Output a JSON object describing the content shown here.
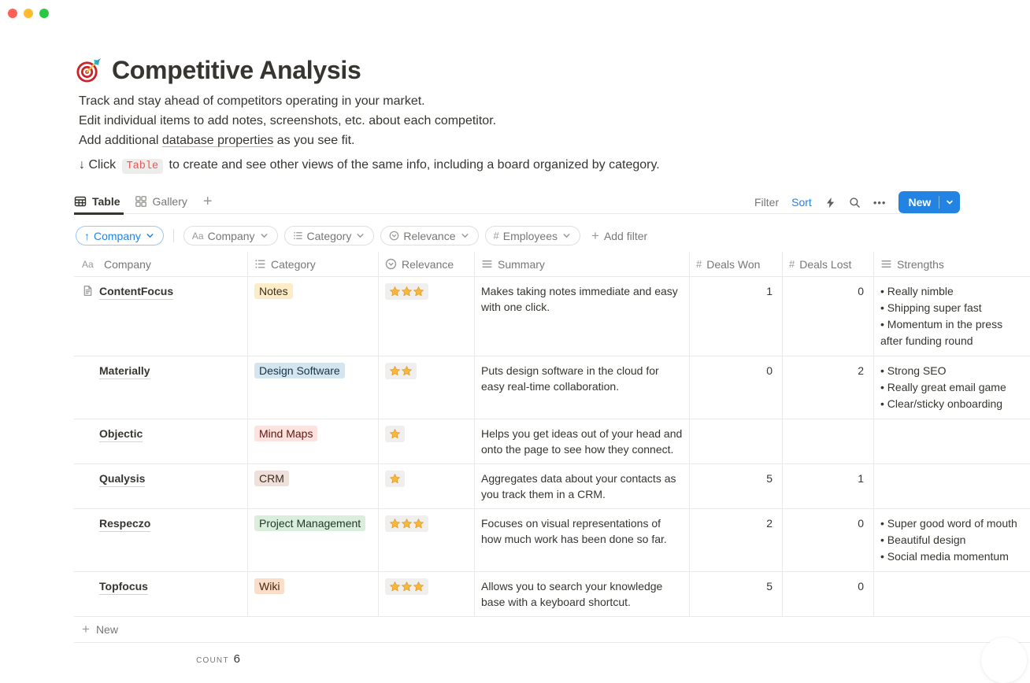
{
  "window": {
    "traffic_lights": {
      "close": "#FF5F57",
      "minimize": "#FEBC2E",
      "zoom": "#28C840"
    }
  },
  "page": {
    "icon_emoji": "🎯",
    "title": "Competitive Analysis",
    "description_line1": "Track and stay ahead of competitors operating in your market.",
    "description_line2": "Edit individual items to add notes, screenshots, etc. about each competitor.",
    "description_line3_prefix": "Add additional ",
    "description_line3_link": "database properties",
    "description_line3_suffix": " as you see fit.",
    "callout_arrow": "↓",
    "callout_prefix": "Click",
    "callout_code": "Table",
    "callout_suffix": "to create and see other views of the same info, including a board organized by category."
  },
  "views": {
    "tabs": [
      {
        "label": "Table",
        "icon": "table-icon",
        "active": true
      },
      {
        "label": "Gallery",
        "icon": "gallery-icon",
        "active": false
      }
    ],
    "add_view_label": "+"
  },
  "toolbar": {
    "filter_label": "Filter",
    "sort_label": "Sort",
    "icons": [
      "lightning-icon",
      "search-icon",
      "more-icon"
    ],
    "new_label": "New"
  },
  "filters": {
    "sort_chip": {
      "direction": "↑",
      "label": "Company"
    },
    "chips": [
      {
        "icon": "text-icon",
        "label": "Company"
      },
      {
        "icon": "list-icon",
        "label": "Category"
      },
      {
        "icon": "select-icon",
        "label": "Relevance"
      },
      {
        "icon": "number-icon",
        "label": "Employees"
      }
    ],
    "add_filter_label": "Add filter"
  },
  "table": {
    "columns": [
      {
        "icon": "text-icon",
        "label": "Company"
      },
      {
        "icon": "list-icon",
        "label": "Category"
      },
      {
        "icon": "select-icon",
        "label": "Relevance"
      },
      {
        "icon": "lines-icon",
        "label": "Summary"
      },
      {
        "icon": "number-icon",
        "label": "Deals Won"
      },
      {
        "icon": "number-icon",
        "label": "Deals Lost"
      },
      {
        "icon": "lines-icon",
        "label": "Strengths"
      }
    ],
    "rows": [
      {
        "company": "ContentFocus",
        "has_page_icon": true,
        "category": "Notes",
        "category_color": "yellow",
        "relevance": 3,
        "summary": "Makes taking notes immediate and easy with one click.",
        "deals_won": "1",
        "deals_lost": "0",
        "strengths": [
          "Really nimble",
          "Shipping super fast",
          "Momentum in the press after funding round"
        ]
      },
      {
        "company": "Materially",
        "has_page_icon": false,
        "category": "Design Software",
        "category_color": "blue",
        "relevance": 2,
        "summary": "Puts design software in the cloud for easy real-time collaboration.",
        "deals_won": "0",
        "deals_lost": "2",
        "strengths": [
          "Strong SEO",
          "Really great email game",
          "Clear/sticky onboarding"
        ]
      },
      {
        "company": "Objectic",
        "has_page_icon": false,
        "category": "Mind Maps",
        "category_color": "red",
        "relevance": 1,
        "summary": "Helps you get ideas out of your head and onto the page to see how they connect.",
        "deals_won": "",
        "deals_lost": "",
        "strengths": []
      },
      {
        "company": "Qualysis",
        "has_page_icon": false,
        "category": "CRM",
        "category_color": "brown",
        "relevance": 1,
        "summary": "Aggregates data about your contacts as you track them in a CRM.",
        "deals_won": "5",
        "deals_lost": "1",
        "strengths": []
      },
      {
        "company": "Respeczo",
        "has_page_icon": false,
        "category": "Project Management",
        "category_color": "green",
        "relevance": 3,
        "summary": "Focuses on visual representations of how much work has been done so far.",
        "deals_won": "2",
        "deals_lost": "0",
        "strengths": [
          "Super good word of mouth",
          "Beautiful design",
          "Social media momentum"
        ]
      },
      {
        "company": "Topfocus",
        "has_page_icon": false,
        "category": "Wiki",
        "category_color": "orange",
        "relevance": 3,
        "summary": "Allows you to search your knowledge base with a keyboard shortcut.",
        "deals_won": "5",
        "deals_lost": "0",
        "strengths": []
      }
    ],
    "footer": {
      "new_label": "New",
      "count_label": "count",
      "count_value": "6"
    }
  },
  "colors": {
    "accent_blue": "#2383E2",
    "code_red": "#EB5757",
    "text": "#37352F",
    "muted": "#787774",
    "border": "#E9E9E7",
    "star": "#F7B83C",
    "tags": {
      "yellow": {
        "bg": "#FDECC8",
        "text": "#402C1B"
      },
      "blue": {
        "bg": "#D3E5EF",
        "text": "#183347"
      },
      "red": {
        "bg": "#FFE2DD",
        "text": "#5D1715"
      },
      "brown": {
        "bg": "#EEE0DA",
        "text": "#442A1E"
      },
      "green": {
        "bg": "#DBEDDB",
        "text": "#1C3829"
      },
      "orange": {
        "bg": "#FADEC9",
        "text": "#49290E"
      }
    }
  }
}
